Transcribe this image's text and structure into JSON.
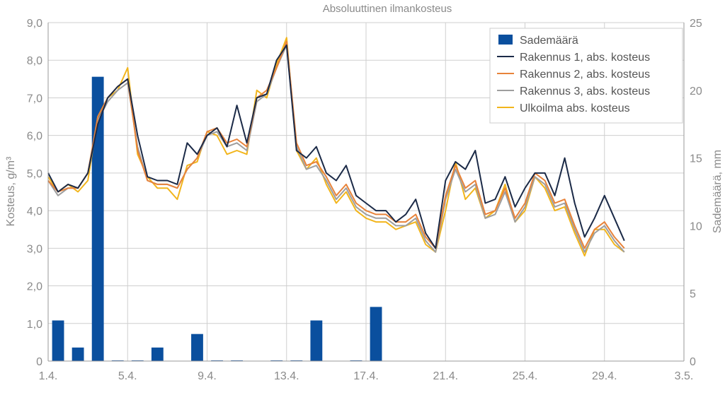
{
  "chart_data": {
    "type": "line",
    "title": "Absoluuttinen ilmankosteus",
    "ylabel": "Kosteus, g/m³",
    "y2label": "Sademäärä, mm",
    "x_tick_labels": [
      "1.4.",
      "5.4.",
      "9.4.",
      "13.4.",
      "17.4.",
      "21.4.",
      "25.4.",
      "29.4.",
      "3.5."
    ],
    "x_tick_days": [
      1,
      5,
      9,
      13,
      17,
      21,
      25,
      29,
      33
    ],
    "xlim_days": [
      1,
      33
    ],
    "y_tick_labels": [
      "0",
      "1,0",
      "2,0",
      "3,0",
      "4,0",
      "5,0",
      "6,0",
      "7,0",
      "8,0",
      "9,0"
    ],
    "ylim": [
      0,
      9
    ],
    "y2_tick_labels": [
      "0",
      "5",
      "10",
      "15",
      "20",
      "25"
    ],
    "y2lim": [
      0,
      25
    ],
    "grid": true,
    "legend_position": "top-right",
    "legend": [
      "Sademäärä",
      "Rakennus 1, abs. kosteus",
      "Rakennus 2, abs. kosteus",
      "Rakennus 3, abs. kosteus",
      "Ulkoilma abs. kosteus"
    ],
    "colors": {
      "rain": "#0a4f9e",
      "building1": "#1b2a47",
      "building2": "#e8833a",
      "building3": "#9e9e9e",
      "outdoor": "#f2b51c",
      "grid": "#cfcfcf",
      "axis": "#999999"
    },
    "rain": {
      "name": "Sademäärä",
      "axis": "right",
      "days": [
        1.5,
        2.5,
        3.5,
        4.5,
        5.5,
        6.5,
        7.5,
        8.5,
        9.5,
        10.5,
        11.5,
        12.5,
        13.5,
        14.5,
        15.5,
        16.5,
        17.5,
        18.5,
        19.5,
        20.5,
        21.5,
        22.5,
        23.5,
        24.5,
        25.5,
        26.5,
        27.5,
        28.5,
        29.5
      ],
      "values": [
        3.0,
        1.0,
        21.0,
        0.05,
        0.05,
        1.0,
        0,
        2.0,
        0.05,
        0.05,
        0,
        0.05,
        0.05,
        3.0,
        0,
        0.05,
        4.0,
        0,
        0,
        0,
        0,
        0,
        0,
        0,
        0,
        0,
        0,
        0,
        0
      ]
    },
    "x_days": [
      1.0,
      1.5,
      2.0,
      2.5,
      3.0,
      3.5,
      4.0,
      4.5,
      5.0,
      5.5,
      6.0,
      6.5,
      7.0,
      7.5,
      8.0,
      8.5,
      9.0,
      9.5,
      10.0,
      10.5,
      11.0,
      11.5,
      12.0,
      12.5,
      13.0,
      13.5,
      14.0,
      14.5,
      15.0,
      15.5,
      16.0,
      16.5,
      17.0,
      17.5,
      18.0,
      18.5,
      19.0,
      19.5,
      20.0,
      20.5,
      21.0,
      21.5,
      22.0,
      22.5,
      23.0,
      23.5,
      24.0,
      24.5,
      25.0,
      25.5,
      26.0,
      26.5,
      27.0,
      27.5,
      28.0,
      28.5,
      29.0,
      29.5,
      30.0
    ],
    "series": [
      {
        "name": "Rakennus 1, abs. kosteus",
        "values": [
          5.0,
          4.5,
          4.7,
          4.6,
          5.0,
          6.3,
          7.0,
          7.3,
          7.5,
          6.0,
          4.9,
          4.8,
          4.8,
          4.7,
          5.8,
          5.5,
          6.0,
          6.2,
          5.7,
          6.8,
          5.8,
          7.0,
          7.1,
          8.0,
          8.4,
          5.6,
          5.4,
          5.7,
          5.0,
          4.8,
          5.2,
          4.4,
          4.2,
          4.0,
          4.0,
          3.7,
          3.9,
          4.3,
          3.4,
          3.0,
          4.8,
          5.3,
          5.1,
          5.6,
          4.2,
          4.3,
          4.9,
          4.1,
          4.6,
          5.0,
          5.0,
          4.4,
          5.4,
          4.2,
          3.3,
          3.8,
          4.4,
          3.8,
          3.2
        ]
      },
      {
        "name": "Rakennus 2, abs. kosteus",
        "values": [
          4.8,
          4.5,
          4.6,
          4.6,
          5.0,
          6.5,
          7.0,
          7.3,
          7.5,
          5.6,
          4.8,
          4.7,
          4.7,
          4.6,
          5.1,
          5.4,
          6.1,
          6.2,
          5.8,
          5.9,
          5.7,
          7.0,
          7.2,
          7.8,
          8.5,
          5.8,
          5.2,
          5.3,
          4.9,
          4.4,
          4.7,
          4.2,
          4.0,
          3.9,
          3.9,
          3.7,
          3.7,
          3.9,
          3.3,
          3.0,
          4.4,
          5.2,
          4.6,
          4.8,
          3.9,
          4.0,
          4.6,
          3.8,
          4.2,
          5.0,
          4.8,
          4.2,
          4.3,
          3.6,
          3.0,
          3.5,
          3.7,
          3.3,
          3.0
        ]
      },
      {
        "name": "Rakennus 3, abs. kosteus",
        "values": [
          4.8,
          4.4,
          4.6,
          4.6,
          5.0,
          6.4,
          6.9,
          7.2,
          7.4,
          5.7,
          4.8,
          4.7,
          4.7,
          4.6,
          5.1,
          5.4,
          6.0,
          6.1,
          5.7,
          5.8,
          5.6,
          6.9,
          7.1,
          7.8,
          8.4,
          5.7,
          5.1,
          5.2,
          4.8,
          4.3,
          4.6,
          4.1,
          3.9,
          3.8,
          3.8,
          3.6,
          3.6,
          3.8,
          3.2,
          2.9,
          4.3,
          5.1,
          4.5,
          4.7,
          3.8,
          3.9,
          4.5,
          3.7,
          4.1,
          4.9,
          4.7,
          4.1,
          4.2,
          3.5,
          2.9,
          3.4,
          3.6,
          3.2,
          2.9
        ]
      },
      {
        "name": "Ulkoilma abs. kosteus",
        "values": [
          4.9,
          4.5,
          4.7,
          4.5,
          4.8,
          6.5,
          7.0,
          7.2,
          7.8,
          5.5,
          4.9,
          4.6,
          4.6,
          4.3,
          5.2,
          5.3,
          6.1,
          6.0,
          5.5,
          5.6,
          5.5,
          7.2,
          7.0,
          7.9,
          8.6,
          5.6,
          5.1,
          5.4,
          4.7,
          4.2,
          4.5,
          4.0,
          3.8,
          3.7,
          3.7,
          3.5,
          3.6,
          3.7,
          3.1,
          2.9,
          4.0,
          5.3,
          4.3,
          4.6,
          3.8,
          4.0,
          4.7,
          3.7,
          4.0,
          4.9,
          4.6,
          4.0,
          4.1,
          3.4,
          2.8,
          3.5,
          3.5,
          3.1,
          2.9
        ]
      }
    ]
  }
}
